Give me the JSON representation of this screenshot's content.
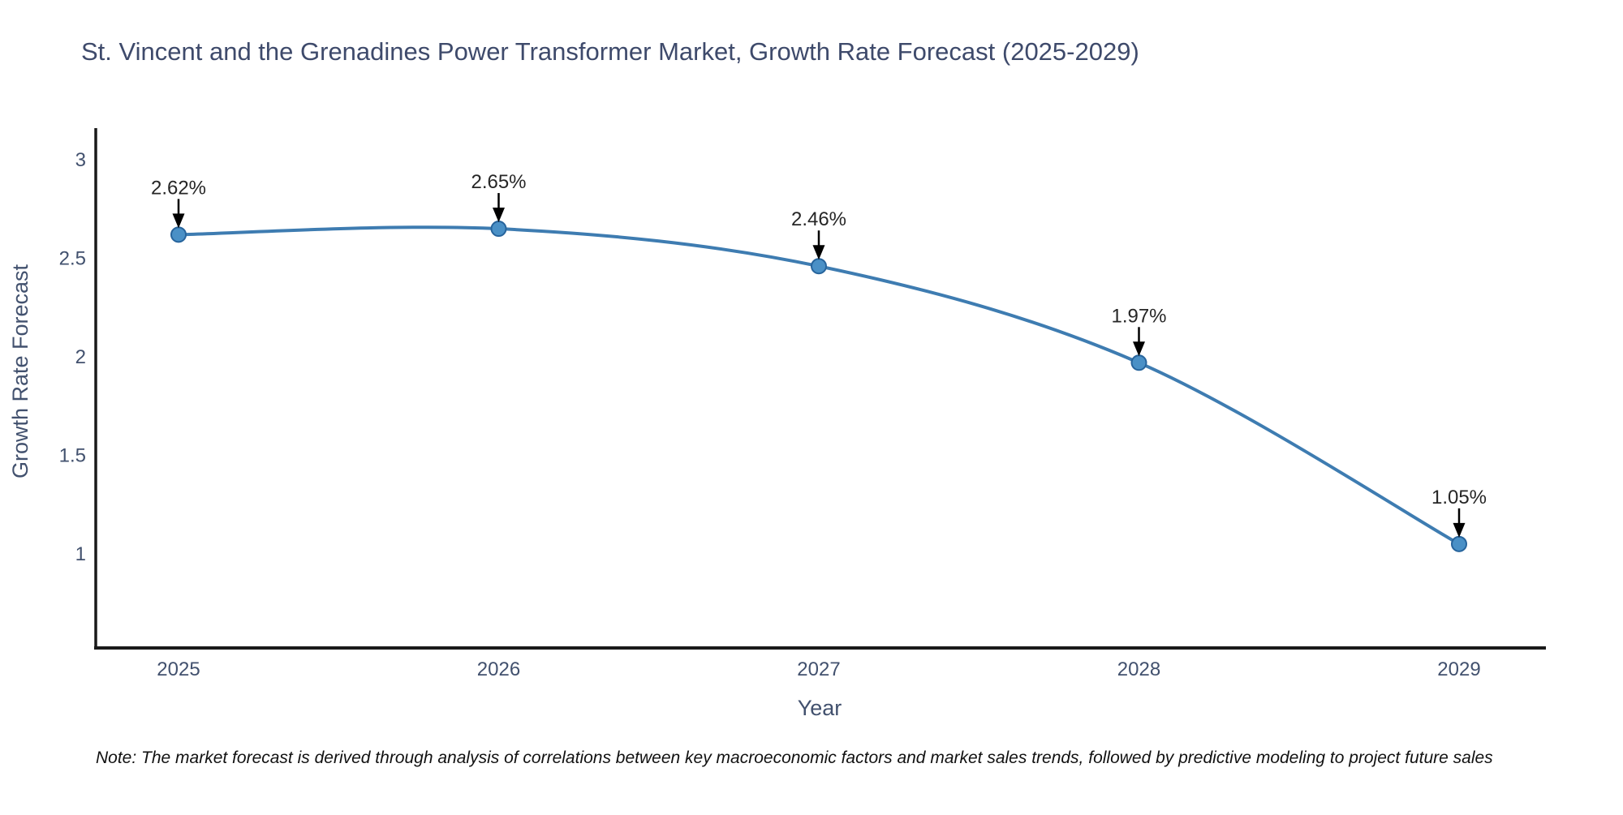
{
  "page": {
    "background": "#ffffff"
  },
  "chart_data": {
    "type": "line",
    "title": "St. Vincent and the Grenadines Power Transformer Market, Growth Rate Forecast (2025-2029)",
    "xlabel": "Year",
    "ylabel": "Growth Rate Forecast",
    "x": [
      "2025",
      "2026",
      "2027",
      "2028",
      "2029"
    ],
    "values": [
      2.62,
      2.65,
      2.46,
      1.97,
      1.05
    ],
    "point_labels": [
      "2.62%",
      "2.65%",
      "2.46%",
      "1.97%",
      "1.05%"
    ],
    "yticks": [
      3,
      2.5,
      2,
      1.5,
      1
    ],
    "ytick_labels": [
      "3",
      "2.5",
      "2",
      "1.5",
      "1"
    ],
    "ylim": [
      0.52,
      3.19
    ],
    "grid": false,
    "legend": "none",
    "line_color": "#3e7cb1",
    "marker_fill": "#4a90c6",
    "marker_edge": "#27649c",
    "annotation_text_color": "#262626",
    "arrow_color": "#000000",
    "spine_color": "#1a1a1a"
  },
  "note": {
    "text": "Note: The market forecast is derived through analysis of correlations between key macroeconomic factors and market sales trends, followed by predictive modeling to project future sales"
  }
}
